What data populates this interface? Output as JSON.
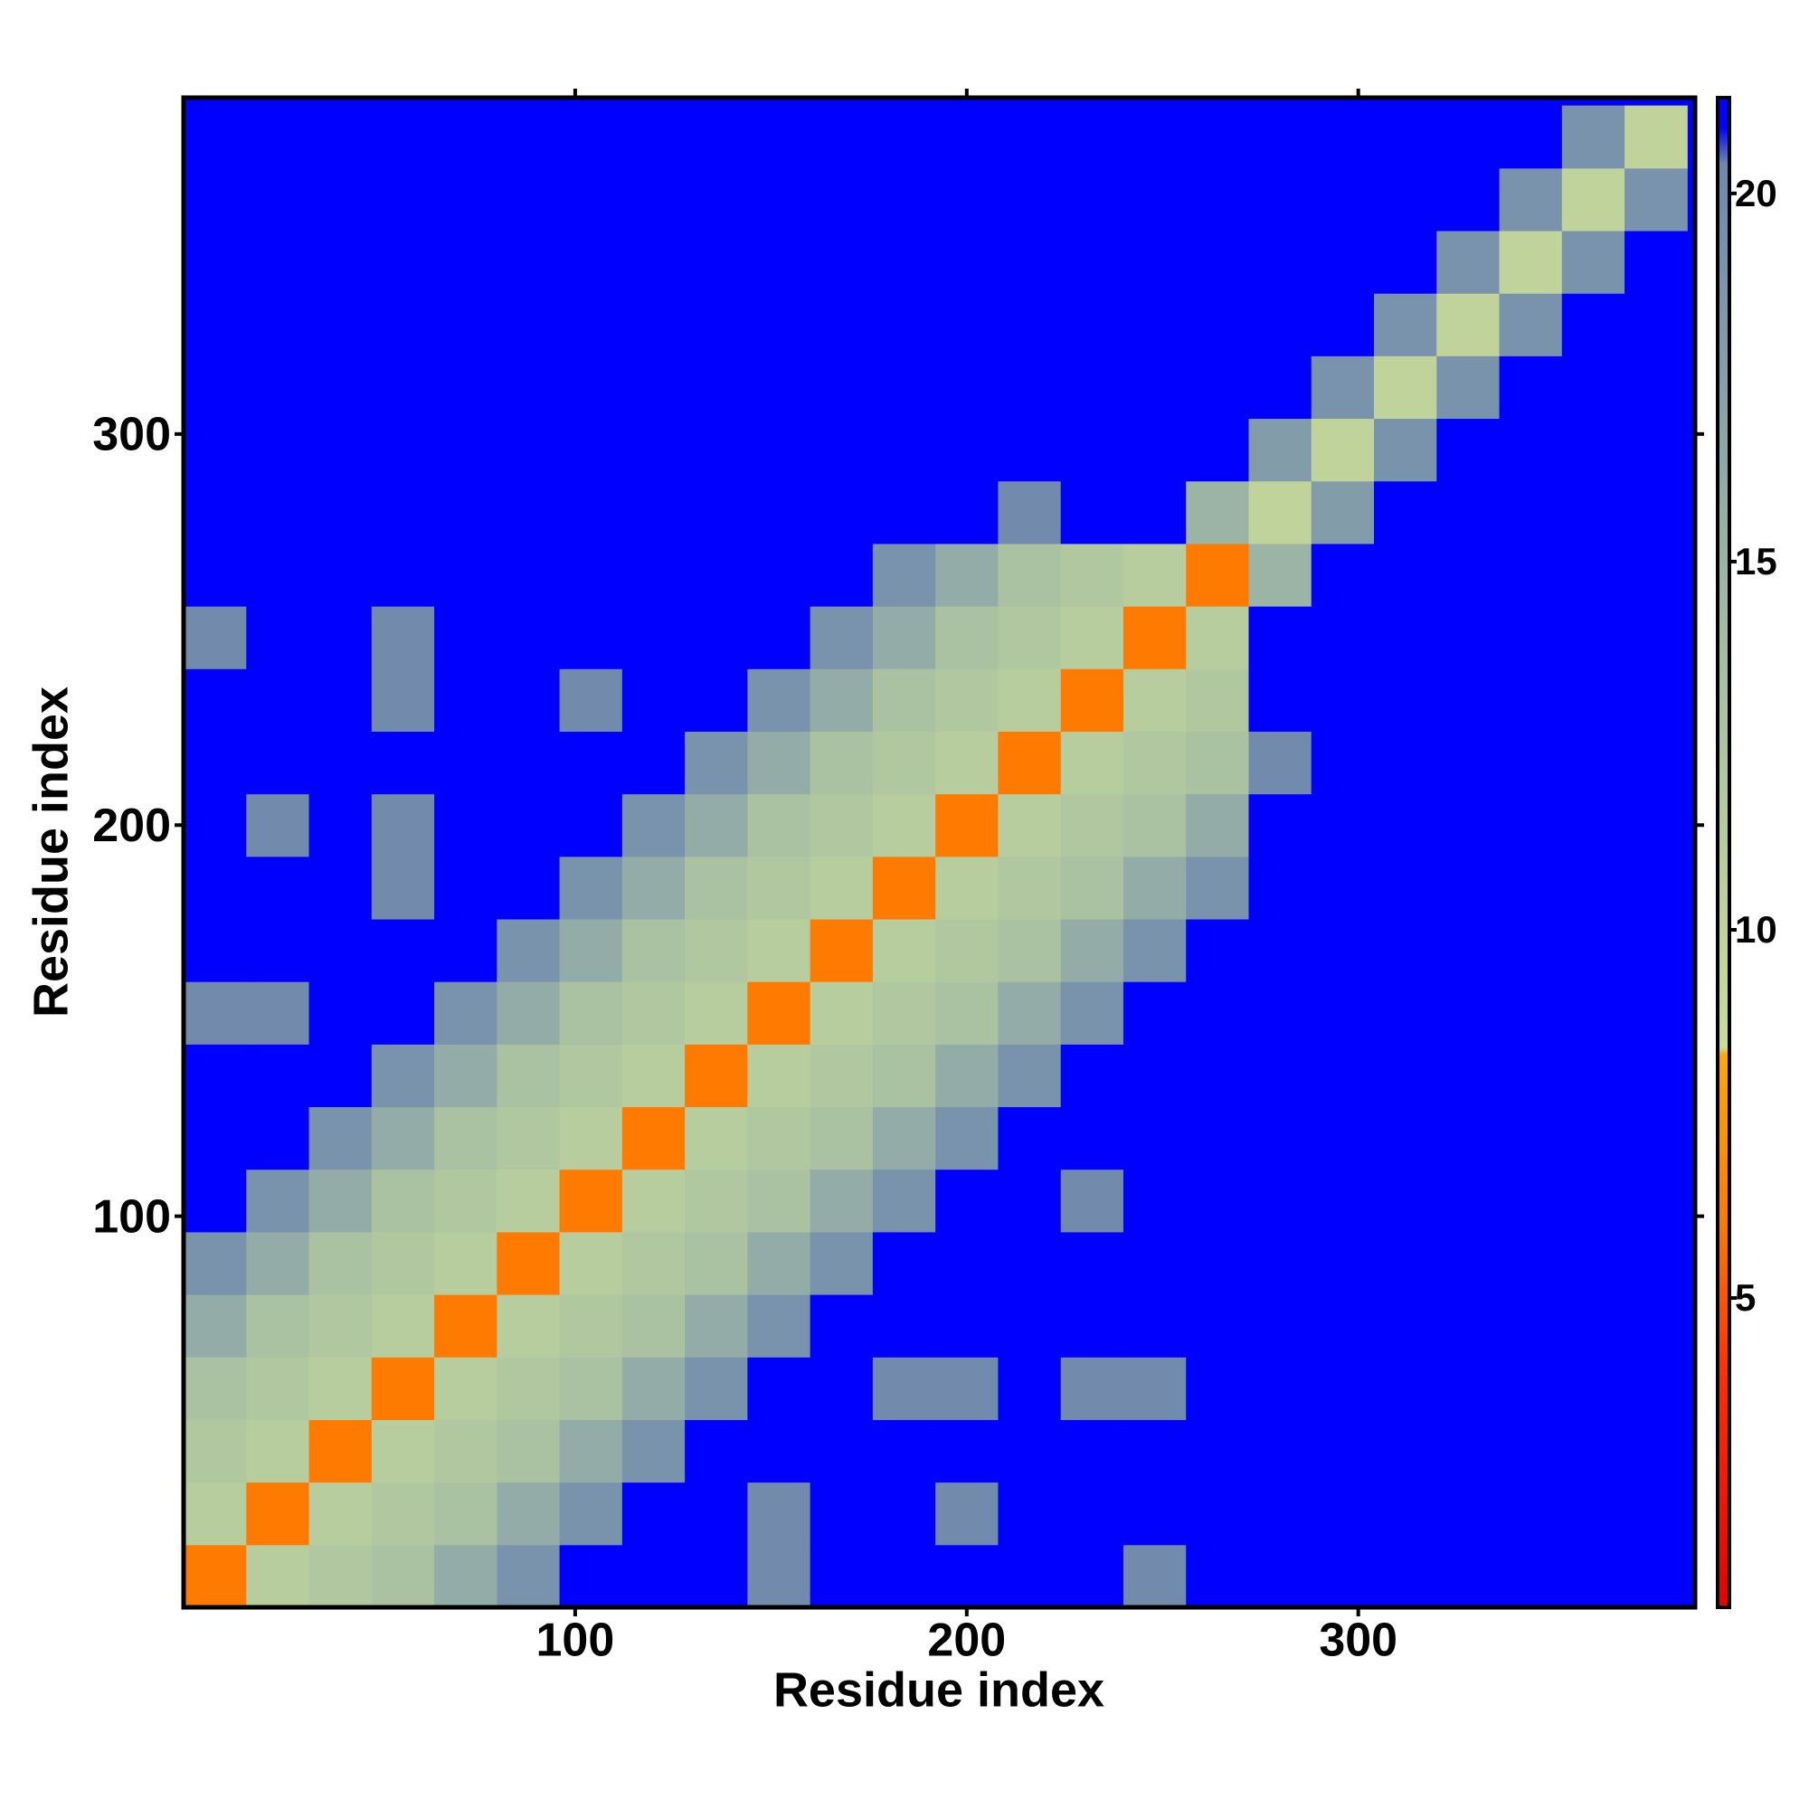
{
  "chart_data": {
    "type": "heatmap",
    "xlabel": "Residue index",
    "ylabel": "Residue index",
    "bins": [
      0,
      16,
      32,
      48,
      64,
      80,
      96,
      112,
      128,
      144,
      160,
      176,
      192,
      208,
      224,
      240,
      256,
      272,
      288,
      304,
      320,
      336,
      352,
      368,
      384
    ],
    "xlim": [
      0,
      386
    ],
    "ylim": [
      0,
      386
    ],
    "xticks": [
      100,
      200,
      300
    ],
    "yticks": [
      100,
      200,
      300
    ],
    "clim": [
      0.8,
      21.3
    ],
    "cticks": [
      5,
      10,
      15,
      20
    ],
    "colorscale": [
      [
        0.8,
        "#e60000"
      ],
      [
        4,
        "#ff3000"
      ],
      [
        6,
        "#ff7a00"
      ],
      [
        8.3,
        "#ffa800"
      ],
      [
        8.4,
        "#cbdc98"
      ],
      [
        14,
        "#a3bca4"
      ],
      [
        20.4,
        "#6f88ae"
      ],
      [
        20.9,
        "#0000ff"
      ]
    ],
    "z": [
      [
        6,
        11,
        12,
        13,
        16,
        19,
        21,
        21,
        21,
        20,
        21,
        21,
        21,
        21,
        21,
        20,
        21,
        21,
        21,
        21,
        21,
        21,
        21,
        21
      ],
      [
        11,
        6,
        11,
        12,
        13,
        16,
        19,
        21,
        21,
        20,
        21,
        21,
        20,
        21,
        21,
        21,
        21,
        21,
        21,
        21,
        21,
        21,
        21,
        21
      ],
      [
        12,
        11,
        6,
        11,
        12,
        13,
        16,
        19,
        21,
        21,
        21,
        21,
        21,
        21,
        21,
        21,
        21,
        21,
        21,
        21,
        21,
        21,
        21,
        21
      ],
      [
        13,
        12,
        11,
        6,
        11,
        12,
        13,
        16,
        19,
        21,
        21,
        20,
        20,
        21,
        20,
        20,
        21,
        21,
        21,
        21,
        21,
        21,
        21,
        21
      ],
      [
        16,
        13,
        12,
        11,
        6,
        11,
        12,
        13,
        16,
        19,
        21,
        21,
        21,
        21,
        21,
        21,
        21,
        21,
        21,
        21,
        21,
        21,
        21,
        21
      ],
      [
        19,
        16,
        13,
        12,
        11,
        6,
        11,
        12,
        13,
        16,
        19,
        21,
        21,
        21,
        21,
        21,
        21,
        21,
        21,
        21,
        21,
        21,
        21,
        21
      ],
      [
        21,
        19,
        16,
        13,
        12,
        11,
        6,
        11,
        12,
        13,
        16,
        19,
        21,
        21,
        20,
        21,
        21,
        21,
        21,
        21,
        21,
        21,
        21,
        21
      ],
      [
        21,
        21,
        19,
        16,
        13,
        12,
        11,
        6,
        11,
        12,
        13,
        16,
        19,
        21,
        21,
        21,
        21,
        21,
        21,
        21,
        21,
        21,
        21,
        21
      ],
      [
        21,
        21,
        21,
        19,
        16,
        13,
        12,
        11,
        6,
        11,
        12,
        13,
        16,
        19,
        21,
        21,
        21,
        21,
        21,
        21,
        21,
        21,
        21,
        21
      ],
      [
        20,
        20,
        21,
        21,
        19,
        16,
        13,
        12,
        11,
        6,
        11,
        12,
        13,
        16,
        19,
        21,
        21,
        21,
        21,
        21,
        21,
        21,
        21,
        21
      ],
      [
        21,
        21,
        21,
        21,
        21,
        19,
        16,
        13,
        12,
        11,
        6,
        11,
        12,
        13,
        16,
        19,
        21,
        21,
        21,
        21,
        21,
        21,
        21,
        21
      ],
      [
        21,
        21,
        21,
        20,
        21,
        21,
        19,
        16,
        13,
        12,
        11,
        6,
        11,
        12,
        13,
        16,
        19,
        21,
        21,
        21,
        21,
        21,
        21,
        21
      ],
      [
        21,
        20,
        21,
        20,
        21,
        21,
        21,
        19,
        16,
        13,
        12,
        11,
        6,
        11,
        12,
        13,
        16,
        21,
        21,
        21,
        21,
        21,
        21,
        21
      ],
      [
        21,
        21,
        21,
        21,
        21,
        21,
        21,
        21,
        19,
        16,
        13,
        12,
        11,
        6,
        11,
        12,
        13,
        20,
        21,
        21,
        21,
        21,
        21,
        21
      ],
      [
        21,
        21,
        21,
        20,
        21,
        21,
        20,
        21,
        21,
        19,
        16,
        13,
        12,
        11,
        6,
        11,
        12,
        21,
        21,
        21,
        21,
        21,
        21,
        21
      ],
      [
        20,
        21,
        21,
        20,
        21,
        21,
        21,
        21,
        21,
        21,
        19,
        16,
        13,
        12,
        11,
        6,
        11,
        21,
        21,
        21,
        21,
        21,
        21,
        21
      ],
      [
        21,
        21,
        21,
        21,
        21,
        21,
        21,
        21,
        21,
        21,
        21,
        19,
        16,
        13,
        12,
        11,
        6,
        15,
        21,
        21,
        21,
        21,
        21,
        21
      ],
      [
        21,
        21,
        21,
        21,
        21,
        21,
        21,
        21,
        21,
        21,
        21,
        21,
        21,
        20,
        21,
        21,
        15,
        10,
        18,
        21,
        21,
        21,
        21,
        21
      ],
      [
        21,
        21,
        21,
        21,
        21,
        21,
        21,
        21,
        21,
        21,
        21,
        21,
        21,
        21,
        21,
        21,
        21,
        18,
        10,
        19,
        21,
        21,
        21,
        21
      ],
      [
        21,
        21,
        21,
        21,
        21,
        21,
        21,
        21,
        21,
        21,
        21,
        21,
        21,
        21,
        21,
        21,
        21,
        21,
        19,
        10,
        19,
        21,
        21,
        21
      ],
      [
        21,
        21,
        21,
        21,
        21,
        21,
        21,
        21,
        21,
        21,
        21,
        21,
        21,
        21,
        21,
        21,
        21,
        21,
        21,
        19,
        10,
        19,
        21,
        21
      ],
      [
        21,
        21,
        21,
        21,
        21,
        21,
        21,
        21,
        21,
        21,
        21,
        21,
        21,
        21,
        21,
        21,
        21,
        21,
        21,
        21,
        19,
        10,
        19,
        21
      ],
      [
        21,
        21,
        21,
        21,
        21,
        21,
        21,
        21,
        21,
        21,
        21,
        21,
        21,
        21,
        21,
        21,
        21,
        21,
        21,
        21,
        21,
        19,
        10,
        19
      ],
      [
        21,
        21,
        21,
        21,
        21,
        21,
        21,
        21,
        21,
        21,
        21,
        21,
        21,
        21,
        21,
        21,
        21,
        21,
        21,
        21,
        21,
        21,
        19,
        10
      ]
    ]
  }
}
